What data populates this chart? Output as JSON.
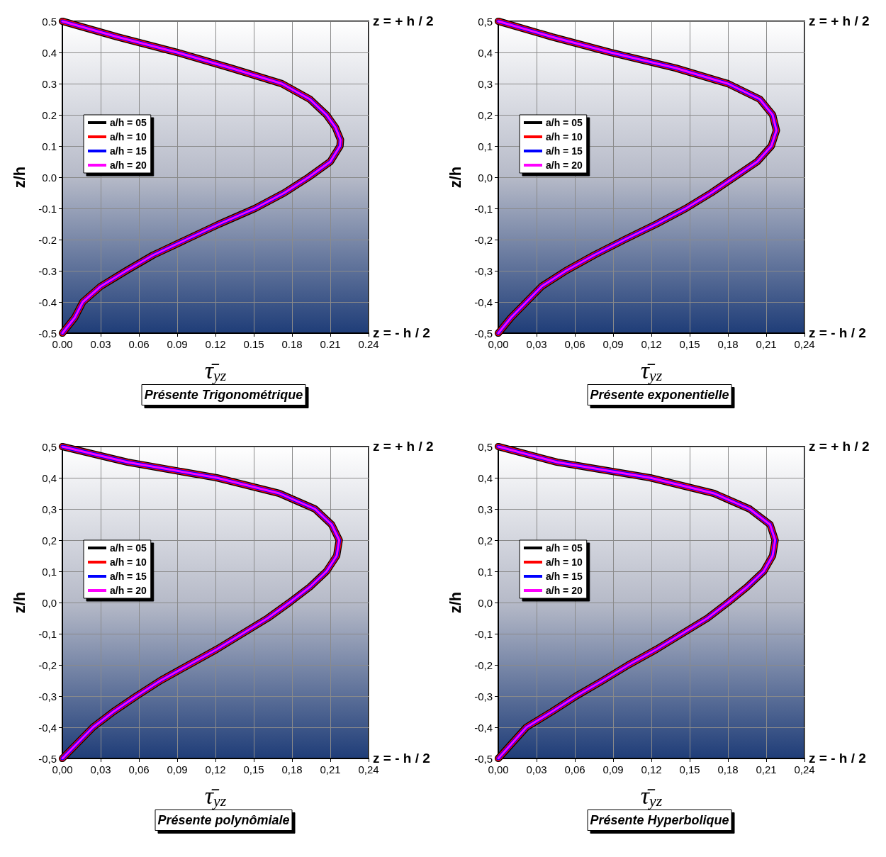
{
  "chart_data": [
    {
      "type": "line",
      "title": "Présente Trigonométrique",
      "xlabel": "τ̄$_{yz}$",
      "ylabel": "z/h",
      "annotations": [
        "z = + h / 2",
        "z = - h / 2"
      ],
      "legend": "left",
      "grid": true,
      "line_style": "solid",
      "xlim": [
        0,
        0.24
      ],
      "xticks": [
        {
          "value": 0,
          "label": "0.00"
        },
        {
          "value": 0.03,
          "label": "0.03"
        },
        {
          "value": 0.06,
          "label": "0.06"
        },
        {
          "value": 0.09,
          "label": "0.09"
        },
        {
          "value": 0.12,
          "label": "0.12"
        },
        {
          "value": 0.15,
          "label": "0.15"
        },
        {
          "value": 0.18,
          "label": "0.18"
        },
        {
          "value": 0.21,
          "label": "0.21"
        },
        {
          "value": 0.24,
          "label": "0.24"
        }
      ],
      "ylim": [
        -0.5,
        0.5
      ],
      "yticks": [
        {
          "value": -0.5,
          "label": "-0.5"
        },
        {
          "value": -0.4,
          "label": "-0.4"
        },
        {
          "value": -0.3,
          "label": "-0.3"
        },
        {
          "value": -0.2,
          "label": "-0.2"
        },
        {
          "value": -0.1,
          "label": "-0.1"
        },
        {
          "value": 0,
          "label": "0.0"
        },
        {
          "value": 0.1,
          "label": "0.1"
        },
        {
          "value": 0.2,
          "label": "0.2"
        },
        {
          "value": 0.3,
          "label": "0.3"
        },
        {
          "value": 0.4,
          "label": "0.4"
        },
        {
          "value": 0.5,
          "label": "0.5"
        }
      ],
      "x": [
        0,
        0.043,
        0.09,
        0.132,
        0.172,
        0.194,
        0.207,
        0.214,
        0.218,
        0.2176,
        0.21,
        0.193,
        0.174,
        0.151,
        0.123,
        0.097,
        0.071,
        0.05,
        0.03,
        0.016,
        0.0097,
        0
      ],
      "series": [
        {
          "name": "a/h = 05",
          "color": "#000000",
          "values": [
            0.5,
            0.45,
            0.4,
            0.35,
            0.3,
            0.25,
            0.2,
            0.16,
            0.12,
            0.1,
            0.05,
            0,
            -0.05,
            -0.1,
            -0.15,
            -0.2,
            -0.25,
            -0.3,
            -0.35,
            -0.4,
            -0.45,
            -0.5
          ]
        },
        {
          "name": "a/h = 10",
          "color": "#ff0000",
          "values": [
            0.5,
            0.45,
            0.4,
            0.35,
            0.3,
            0.25,
            0.2,
            0.16,
            0.12,
            0.1,
            0.05,
            0,
            -0.05,
            -0.1,
            -0.15,
            -0.2,
            -0.25,
            -0.3,
            -0.35,
            -0.4,
            -0.45,
            -0.5
          ]
        },
        {
          "name": "a/h = 15",
          "color": "#0000ff",
          "values": [
            0.5,
            0.45,
            0.4,
            0.35,
            0.3,
            0.25,
            0.2,
            0.16,
            0.12,
            0.1,
            0.05,
            0,
            -0.05,
            -0.1,
            -0.15,
            -0.2,
            -0.25,
            -0.3,
            -0.35,
            -0.4,
            -0.45,
            -0.5
          ]
        },
        {
          "name": "a/h = 20",
          "color": "#ff00ff",
          "values": [
            0.5,
            0.45,
            0.4,
            0.35,
            0.3,
            0.25,
            0.2,
            0.16,
            0.12,
            0.1,
            0.05,
            0,
            -0.05,
            -0.1,
            -0.15,
            -0.2,
            -0.25,
            -0.3,
            -0.35,
            -0.4,
            -0.45,
            -0.5
          ]
        }
      ]
    },
    {
      "type": "line",
      "title": "Présente exponentielle",
      "xlabel": "τ̄$_{yz}$",
      "ylabel": "z/h",
      "annotations": [
        "z = + h / 2",
        "z = - h / 2"
      ],
      "legend": "left",
      "grid": true,
      "line_style": "solid",
      "xlim": [
        0,
        0.24
      ],
      "xticks": [
        {
          "value": 0,
          "label": "0,00"
        },
        {
          "value": 0.03,
          "label": "0,03"
        },
        {
          "value": 0.06,
          "label": "0,06"
        },
        {
          "value": 0.09,
          "label": "0,09"
        },
        {
          "value": 0.12,
          "label": "0,12"
        },
        {
          "value": 0.15,
          "label": "0,15"
        },
        {
          "value": 0.18,
          "label": "0,18"
        },
        {
          "value": 0.21,
          "label": "0,21"
        },
        {
          "value": 0.24,
          "label": "0,24"
        }
      ],
      "ylim": [
        -0.5,
        0.5
      ],
      "yticks": [
        {
          "value": -0.5,
          "label": "-0,5"
        },
        {
          "value": -0.4,
          "label": "-0,4"
        },
        {
          "value": -0.3,
          "label": "-0,3"
        },
        {
          "value": -0.2,
          "label": "-0,2"
        },
        {
          "value": -0.1,
          "label": "-0,1"
        },
        {
          "value": 0,
          "label": "0,0"
        },
        {
          "value": 0.1,
          "label": "0,1"
        },
        {
          "value": 0.2,
          "label": "0,2"
        },
        {
          "value": 0.3,
          "label": "0,3"
        },
        {
          "value": 0.4,
          "label": "0,4"
        },
        {
          "value": 0.5,
          "label": "0,5"
        }
      ],
      "x": [
        0,
        0.042,
        0.088,
        0.139,
        0.18,
        0.205,
        0.215,
        0.218,
        0.214,
        0.203,
        0.185,
        0.167,
        0.147,
        0.124,
        0.099,
        0.075,
        0.053,
        0.034,
        0.022,
        0.01,
        0
      ],
      "series": [
        {
          "name": "a/h = 05",
          "color": "#000000",
          "values": [
            0.5,
            0.45,
            0.4,
            0.35,
            0.3,
            0.25,
            0.2,
            0.15,
            0.1,
            0.05,
            0,
            -0.05,
            -0.1,
            -0.15,
            -0.2,
            -0.25,
            -0.3,
            -0.35,
            -0.4,
            -0.45,
            -0.5
          ]
        },
        {
          "name": "a/h = 10",
          "color": "#ff0000",
          "values": [
            0.5,
            0.45,
            0.4,
            0.35,
            0.3,
            0.25,
            0.2,
            0.15,
            0.1,
            0.05,
            0,
            -0.05,
            -0.1,
            -0.15,
            -0.2,
            -0.25,
            -0.3,
            -0.35,
            -0.4,
            -0.45,
            -0.5
          ]
        },
        {
          "name": "a/h = 15",
          "color": "#0000ff",
          "values": [
            0.5,
            0.45,
            0.4,
            0.35,
            0.3,
            0.25,
            0.2,
            0.15,
            0.1,
            0.05,
            0,
            -0.05,
            -0.1,
            -0.15,
            -0.2,
            -0.25,
            -0.3,
            -0.35,
            -0.4,
            -0.45,
            -0.5
          ]
        },
        {
          "name": "a/h = 20",
          "color": "#ff00ff",
          "values": [
            0.5,
            0.45,
            0.4,
            0.35,
            0.3,
            0.25,
            0.2,
            0.15,
            0.1,
            0.05,
            0,
            -0.05,
            -0.1,
            -0.15,
            -0.2,
            -0.25,
            -0.3,
            -0.35,
            -0.4,
            -0.45,
            -0.5
          ]
        }
      ]
    },
    {
      "type": "line",
      "title": "Présente polynômiale",
      "xlabel": "τ̄$_{yz}$",
      "ylabel": "z/h",
      "annotations": [
        "z = + h / 2",
        "z = - h / 2"
      ],
      "legend": "left",
      "grid": true,
      "line_style": "solid",
      "xlim": [
        0,
        0.24
      ],
      "xticks": [
        {
          "value": 0,
          "label": "0,00"
        },
        {
          "value": 0.03,
          "label": "0,03"
        },
        {
          "value": 0.06,
          "label": "0,06"
        },
        {
          "value": 0.09,
          "label": "0,09"
        },
        {
          "value": 0.12,
          "label": "0,12"
        },
        {
          "value": 0.15,
          "label": "0,15"
        },
        {
          "value": 0.18,
          "label": "0,18"
        },
        {
          "value": 0.21,
          "label": "0,21"
        },
        {
          "value": 0.24,
          "label": "0,24"
        }
      ],
      "ylim": [
        -0.5,
        0.5
      ],
      "yticks": [
        {
          "value": -0.5,
          "label": "-0,5"
        },
        {
          "value": -0.4,
          "label": "-0,4"
        },
        {
          "value": -0.3,
          "label": "-0,3"
        },
        {
          "value": -0.2,
          "label": "-0,2"
        },
        {
          "value": -0.1,
          "label": "-0,1"
        },
        {
          "value": 0,
          "label": "0,0"
        },
        {
          "value": 0.1,
          "label": "0,1"
        },
        {
          "value": 0.2,
          "label": "0,2"
        },
        {
          "value": 0.3,
          "label": "0,3"
        },
        {
          "value": 0.4,
          "label": "0,4"
        },
        {
          "value": 0.5,
          "label": "0,5"
        }
      ],
      "x": [
        0,
        0.051,
        0.121,
        0.17,
        0.198,
        0.211,
        0.217,
        0.215,
        0.207,
        0.194,
        0.178,
        0.161,
        0.141,
        0.121,
        0.099,
        0.077,
        0.058,
        0.04,
        0.024,
        0.012,
        0
      ],
      "series": [
        {
          "name": "a/h = 05",
          "color": "#000000",
          "values": [
            0.5,
            0.45,
            0.4,
            0.35,
            0.3,
            0.25,
            0.2,
            0.15,
            0.1,
            0.05,
            0,
            -0.05,
            -0.1,
            -0.15,
            -0.2,
            -0.25,
            -0.3,
            -0.35,
            -0.4,
            -0.45,
            -0.5
          ]
        },
        {
          "name": "a/h = 10",
          "color": "#ff0000",
          "values": [
            0.5,
            0.45,
            0.4,
            0.35,
            0.3,
            0.25,
            0.2,
            0.15,
            0.1,
            0.05,
            0,
            -0.05,
            -0.1,
            -0.15,
            -0.2,
            -0.25,
            -0.3,
            -0.35,
            -0.4,
            -0.45,
            -0.5
          ]
        },
        {
          "name": "a/h = 15",
          "color": "#0000ff",
          "values": [
            0.5,
            0.45,
            0.4,
            0.35,
            0.3,
            0.25,
            0.2,
            0.15,
            0.1,
            0.05,
            0,
            -0.05,
            -0.1,
            -0.15,
            -0.2,
            -0.25,
            -0.3,
            -0.35,
            -0.4,
            -0.45,
            -0.5
          ]
        },
        {
          "name": "a/h = 20",
          "color": "#ff00ff",
          "values": [
            0.5,
            0.45,
            0.4,
            0.35,
            0.3,
            0.25,
            0.2,
            0.15,
            0.1,
            0.05,
            0,
            -0.05,
            -0.1,
            -0.15,
            -0.2,
            -0.25,
            -0.3,
            -0.35,
            -0.4,
            -0.45,
            -0.5
          ]
        }
      ]
    },
    {
      "type": "line",
      "title": "Présente Hyperbolique",
      "xlabel": "τ̄$_{yz}$",
      "ylabel": "z/h",
      "annotations": [
        "z = + h / 2",
        "z = - h / 2"
      ],
      "legend": "left",
      "grid": true,
      "line_style": "solid",
      "xlim": [
        0,
        0.24
      ],
      "xticks": [
        {
          "value": 0,
          "label": "0,00"
        },
        {
          "value": 0.03,
          "label": "0,03"
        },
        {
          "value": 0.06,
          "label": "0,06"
        },
        {
          "value": 0.09,
          "label": "0,09"
        },
        {
          "value": 0.12,
          "label": "0,12"
        },
        {
          "value": 0.15,
          "label": "0,15"
        },
        {
          "value": 0.18,
          "label": "0,18"
        },
        {
          "value": 0.21,
          "label": "0,21"
        },
        {
          "value": 0.24,
          "label": "0,24"
        }
      ],
      "ylim": [
        -0.5,
        0.5
      ],
      "yticks": [
        {
          "value": -0.5,
          "label": "-0,5"
        },
        {
          "value": -0.4,
          "label": "-0,4"
        },
        {
          "value": -0.3,
          "label": "-0,3"
        },
        {
          "value": -0.2,
          "label": "-0,2"
        },
        {
          "value": -0.1,
          "label": "-0,1"
        },
        {
          "value": 0,
          "label": "0,0"
        },
        {
          "value": 0.1,
          "label": "0,1"
        },
        {
          "value": 0.2,
          "label": "0,2"
        },
        {
          "value": 0.3,
          "label": "0,3"
        },
        {
          "value": 0.4,
          "label": "0,4"
        },
        {
          "value": 0.5,
          "label": "0,5"
        }
      ],
      "x": [
        0,
        0.046,
        0.119,
        0.169,
        0.197,
        0.213,
        0.217,
        0.215,
        0.208,
        0.195,
        0.18,
        0.164,
        0.144,
        0.124,
        0.102,
        0.082,
        0.061,
        0.042,
        0.022,
        0.011,
        0
      ],
      "series": [
        {
          "name": "a/h = 05",
          "color": "#000000",
          "values": [
            0.5,
            0.45,
            0.4,
            0.35,
            0.3,
            0.25,
            0.2,
            0.15,
            0.1,
            0.05,
            0,
            -0.05,
            -0.1,
            -0.15,
            -0.2,
            -0.25,
            -0.3,
            -0.35,
            -0.4,
            -0.45,
            -0.5
          ]
        },
        {
          "name": "a/h = 10",
          "color": "#ff0000",
          "values": [
            0.5,
            0.45,
            0.4,
            0.35,
            0.3,
            0.25,
            0.2,
            0.15,
            0.1,
            0.05,
            0,
            -0.05,
            -0.1,
            -0.15,
            -0.2,
            -0.25,
            -0.3,
            -0.35,
            -0.4,
            -0.45,
            -0.5
          ]
        },
        {
          "name": "a/h = 15",
          "color": "#0000ff",
          "values": [
            0.5,
            0.45,
            0.4,
            0.35,
            0.3,
            0.25,
            0.2,
            0.15,
            0.1,
            0.05,
            0,
            -0.05,
            -0.1,
            -0.15,
            -0.2,
            -0.25,
            -0.3,
            -0.35,
            -0.4,
            -0.45,
            -0.5
          ]
        },
        {
          "name": "a/h = 20",
          "color": "#ff00ff",
          "values": [
            0.5,
            0.45,
            0.4,
            0.35,
            0.3,
            0.25,
            0.2,
            0.15,
            0.1,
            0.05,
            0,
            -0.05,
            -0.1,
            -0.15,
            -0.2,
            -0.25,
            -0.3,
            -0.35,
            -0.4,
            -0.45,
            -0.5
          ]
        }
      ]
    }
  ]
}
